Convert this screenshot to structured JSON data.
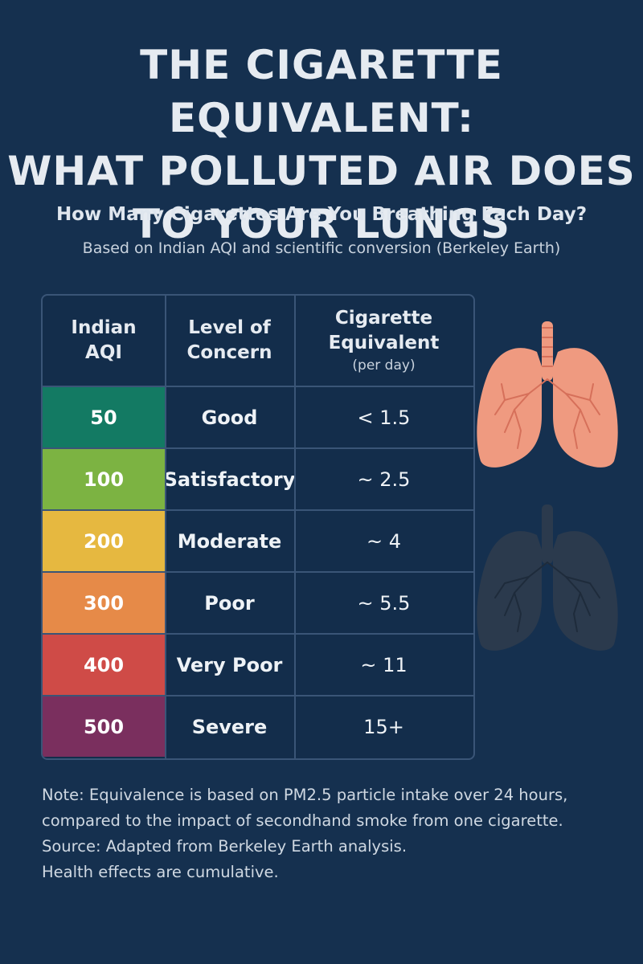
{
  "title": {
    "line1": "THE CIGARETTE EQUIVALENT:",
    "line2": "WHAT POLLUTED AIR DOES",
    "line3": "TO YOUR LUNGS"
  },
  "subtitle": "How Many Cigarettes Are You Breathing Each Day?",
  "source_line": "Based on Indian AQI and scientific conversion (Berkeley Earth)",
  "table": {
    "headers": {
      "aqi": [
        "Indian",
        "AQI"
      ],
      "level": [
        "Level of",
        "Concern"
      ],
      "cigarette": [
        "Cigarette",
        "Equivalent"
      ],
      "cigarette_unit": "(per day)"
    },
    "rows": [
      {
        "aqi": "50",
        "level": "Good",
        "cigarettes": "< 1.5",
        "color": "#137a63"
      },
      {
        "aqi": "100",
        "level": "Satisfactory",
        "cigarettes": "~ 2.5",
        "color": "#7cb342"
      },
      {
        "aqi": "200",
        "level": "Moderate",
        "cigarettes": "~ 4",
        "color": "#e6b840"
      },
      {
        "aqi": "300",
        "level": "Poor",
        "cigarettes": "~ 5.5",
        "color": "#e68a48"
      },
      {
        "aqi": "400",
        "level": "Very Poor",
        "cigarettes": "~ 11",
        "color": "#cf4b47"
      },
      {
        "aqi": "500",
        "level": "Severe",
        "cigarettes": "15+",
        "color": "#7a2f5e"
      }
    ]
  },
  "illustrations": {
    "healthy_lungs_color": "#ef9a80",
    "damaged_lungs_color": "#2b3a4d",
    "healthy_icon": "healthy-lungs-icon",
    "damaged_icon": "damaged-lungs-icon"
  },
  "note": {
    "line1": "Note: Equivalence is based on PM2.5 particle intake over 24 hours,",
    "line2": "compared to the impact of secondhand smoke from one cigarette.",
    "line3": "Source: Adapted from Berkeley Earth analysis.",
    "line4": "Health effects are cumulative."
  },
  "colors": {
    "background": "#15304f",
    "table_border": "#3a5577"
  }
}
